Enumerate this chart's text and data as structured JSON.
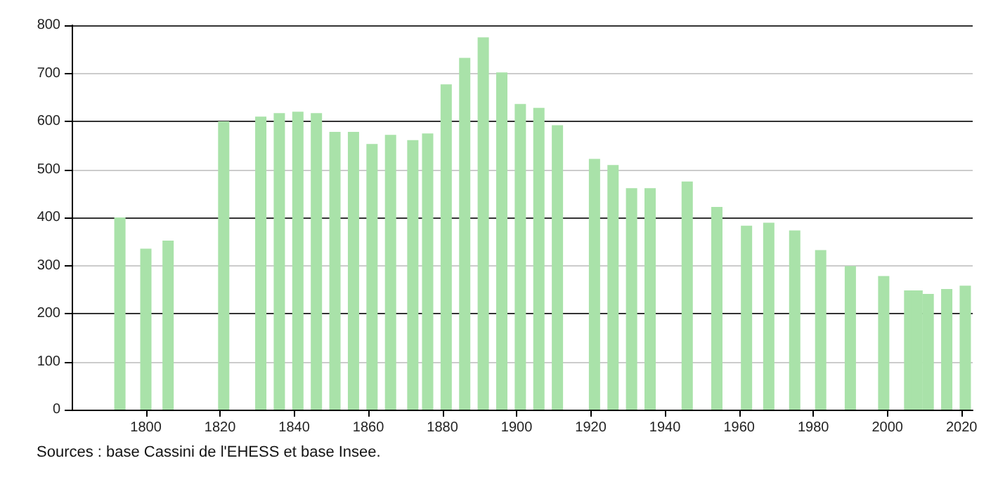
{
  "chart_data": {
    "type": "bar",
    "x": [
      1793,
      1800,
      1806,
      1821,
      1831,
      1836,
      1841,
      1846,
      1851,
      1856,
      1861,
      1866,
      1872,
      1876,
      1881,
      1886,
      1891,
      1896,
      1901,
      1906,
      1911,
      1921,
      1926,
      1931,
      1936,
      1946,
      1954,
      1962,
      1968,
      1975,
      1982,
      1990,
      1999,
      2006,
      2008,
      2011,
      2016,
      2021
    ],
    "values": [
      400,
      335,
      352,
      600,
      610,
      617,
      620,
      617,
      578,
      578,
      553,
      572,
      561,
      575,
      677,
      732,
      775,
      702,
      636,
      628,
      592,
      522,
      509,
      461,
      461,
      475,
      422,
      383,
      389,
      373,
      332,
      299,
      278,
      248,
      248,
      241,
      251,
      258
    ],
    "color": "#a9e2a9",
    "xlim": [
      1780,
      2023
    ],
    "xticks": [
      1800,
      1820,
      1840,
      1860,
      1880,
      1900,
      1920,
      1940,
      1960,
      1980,
      2000,
      2020
    ],
    "ylim": [
      0,
      800
    ],
    "yticks": [
      0,
      100,
      200,
      300,
      400,
      500,
      600,
      700,
      800
    ],
    "grid": "y",
    "annotations": [
      "Sources : base Cassini de l'EHESS et base Insee."
    ]
  }
}
